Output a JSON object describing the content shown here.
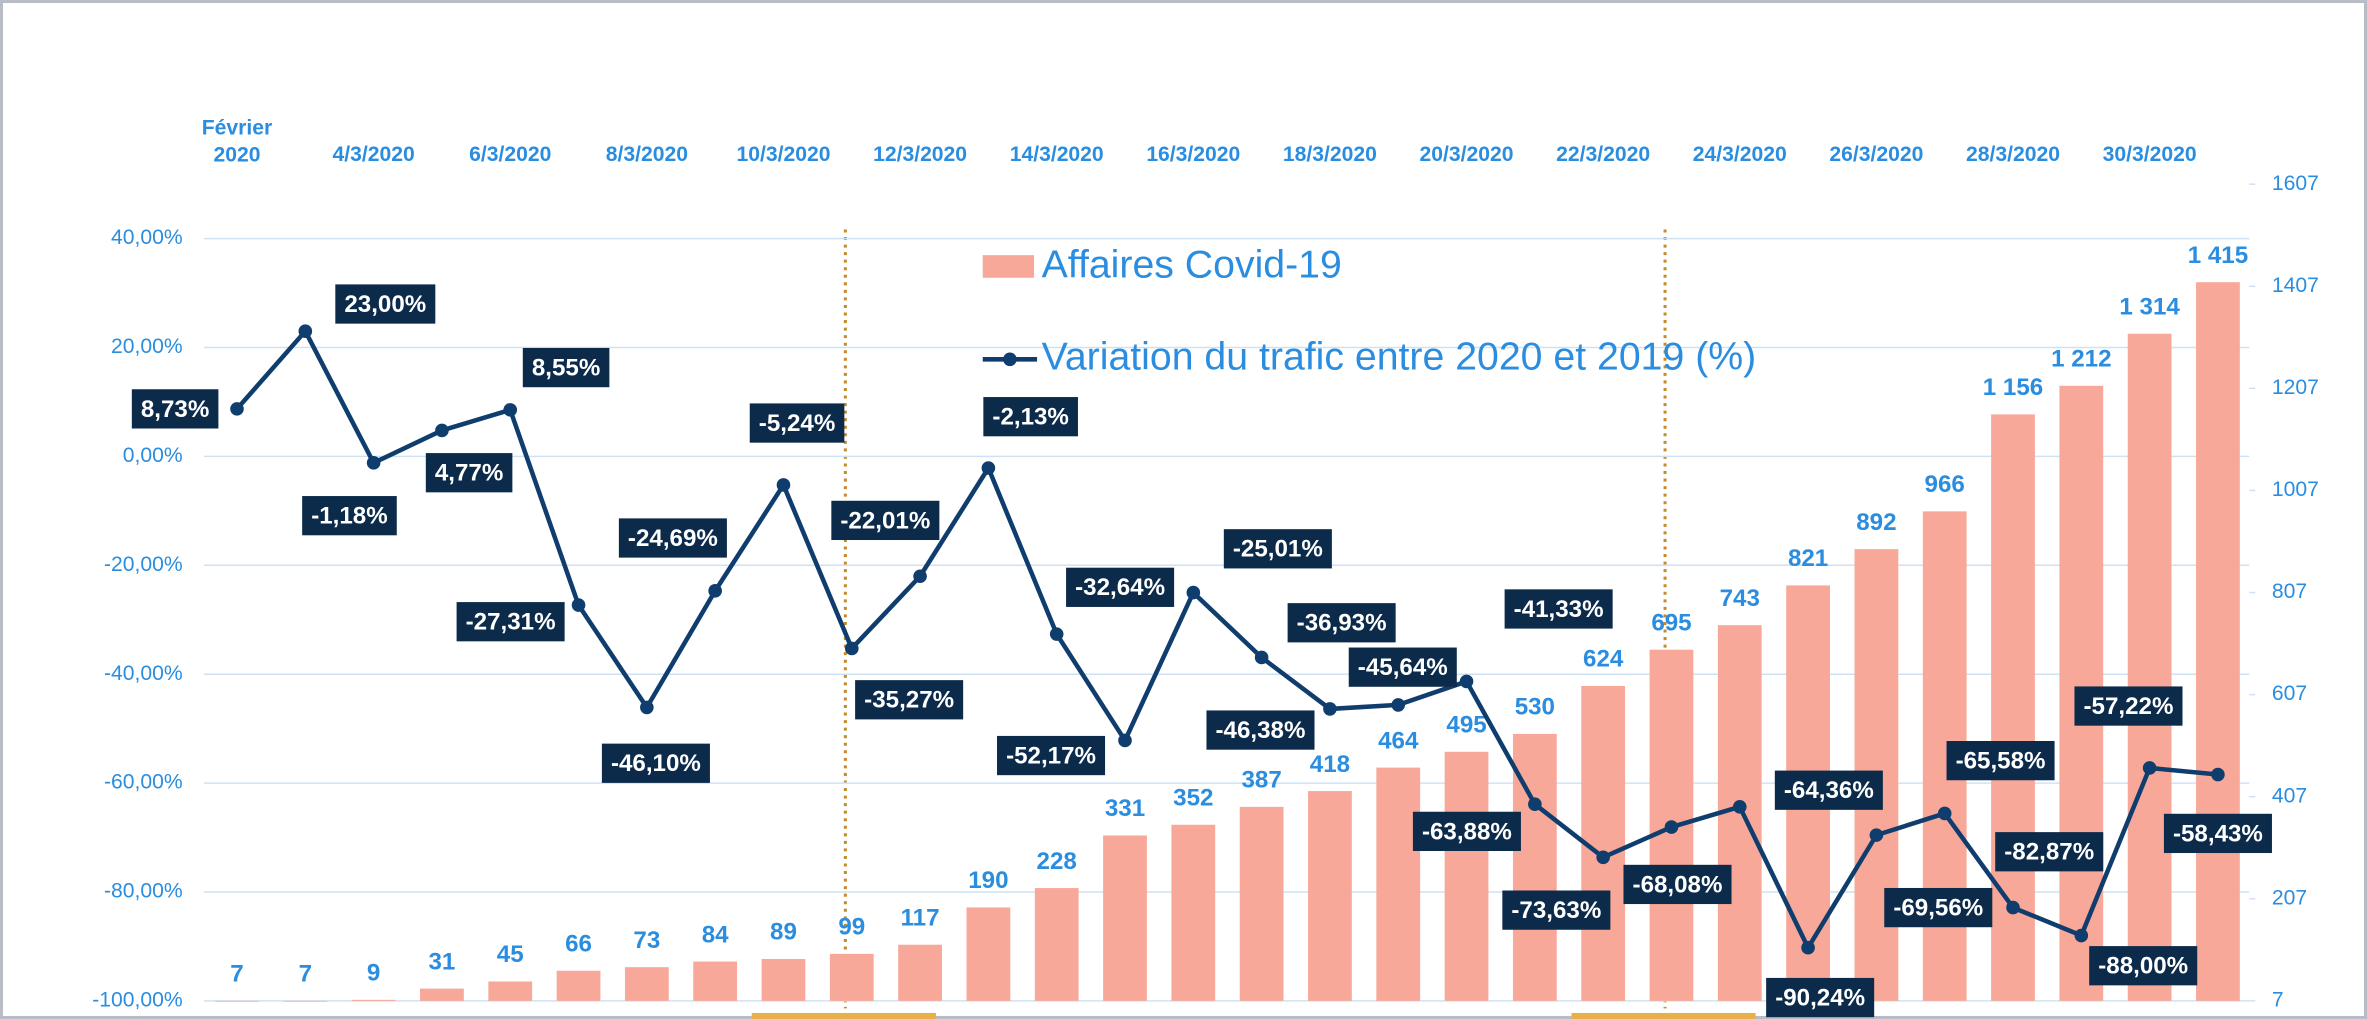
{
  "chart_data": {
    "type": "bar_line",
    "categories": [
      "Février 2020",
      null,
      "4/3/2020",
      null,
      "6/3/2020",
      null,
      "8/3/2020",
      null,
      "10/3/2020",
      null,
      "12/3/2020",
      null,
      "14/3/2020",
      null,
      "16/3/2020",
      null,
      "18/3/2020",
      null,
      "20/3/2020",
      null,
      "22/3/2020",
      null,
      "24/3/2020",
      null,
      "26/3/2020",
      null,
      "28/3/2020",
      null,
      "30/3/2020",
      null
    ],
    "series": [
      {
        "name": "Affaires Covid-19",
        "color": "#f8a898",
        "axis": "y2",
        "values": [
          7,
          7,
          9,
          31,
          45,
          66,
          73,
          84,
          89,
          99,
          117,
          190,
          228,
          331,
          352,
          387,
          418,
          464,
          495,
          530,
          624,
          695,
          743,
          821,
          892,
          966,
          1156,
          1212,
          1314,
          1415
        ],
        "value_labels": [
          "7",
          "7",
          "9",
          "31",
          "45",
          "66",
          "73",
          "84",
          "89",
          "99",
          "117",
          "190",
          "228",
          "331",
          "352",
          "387",
          "418",
          "464",
          "495",
          "530",
          "624",
          "695",
          "743",
          "821",
          "892",
          "966",
          "1 156",
          "1 212",
          "1 314",
          "1 415"
        ]
      },
      {
        "name": "Variation du trafic entre 2020 et 2019 (%)",
        "color": "#0f3d6e",
        "axis": "y",
        "values": [
          8.73,
          23.0,
          -1.18,
          4.77,
          8.55,
          -27.31,
          -46.1,
          -24.69,
          -5.24,
          -35.27,
          -22.01,
          -2.13,
          -32.64,
          -52.17,
          -25.01,
          -36.93,
          -46.38,
          -45.64,
          -41.33,
          -63.88,
          -73.63,
          -68.08,
          -64.36,
          -90.24,
          -69.56,
          -65.58,
          -82.87,
          -88.0,
          -57.22,
          -58.43
        ],
        "value_labels": [
          "8,73%",
          "23,00%",
          "-1,18%",
          "4,77%",
          "8,55%",
          "-27,31%",
          "-46,10%",
          "-24,69%",
          "-5,24%",
          "-35,27%",
          "-22,01%",
          "-2,13%",
          "-32,64%",
          "-52,17%",
          "-25,01%",
          "-36,93%",
          "-46,38%",
          "-45,64%",
          "-41,33%",
          "-63,88%",
          "-73,63%",
          "-68,08%",
          "-64,36%",
          "-90,24%",
          "-69,56%",
          "-65,58%",
          "-82,87%",
          "-88,00%",
          "-57,22%",
          "-58,43%"
        ]
      }
    ],
    "ylim": [
      -100,
      50
    ],
    "yticks": [
      {
        "value": -100,
        "label": "-100,00%"
      },
      {
        "value": -80,
        "label": "-80,00%"
      },
      {
        "value": -60,
        "label": "-60,00%"
      },
      {
        "value": -40,
        "label": "-40,00%"
      },
      {
        "value": -20,
        "label": "-20,00%"
      },
      {
        "value": 0,
        "label": "0,00%"
      },
      {
        "value": 20,
        "label": "20,00%"
      },
      {
        "value": 40,
        "label": "40,00%"
      }
    ],
    "y2lim": [
      7,
      1607
    ],
    "y2ticks": [
      7,
      207,
      407,
      607,
      807,
      1007,
      1207,
      1407,
      1607
    ],
    "grid": true,
    "legend": "top"
  }
}
